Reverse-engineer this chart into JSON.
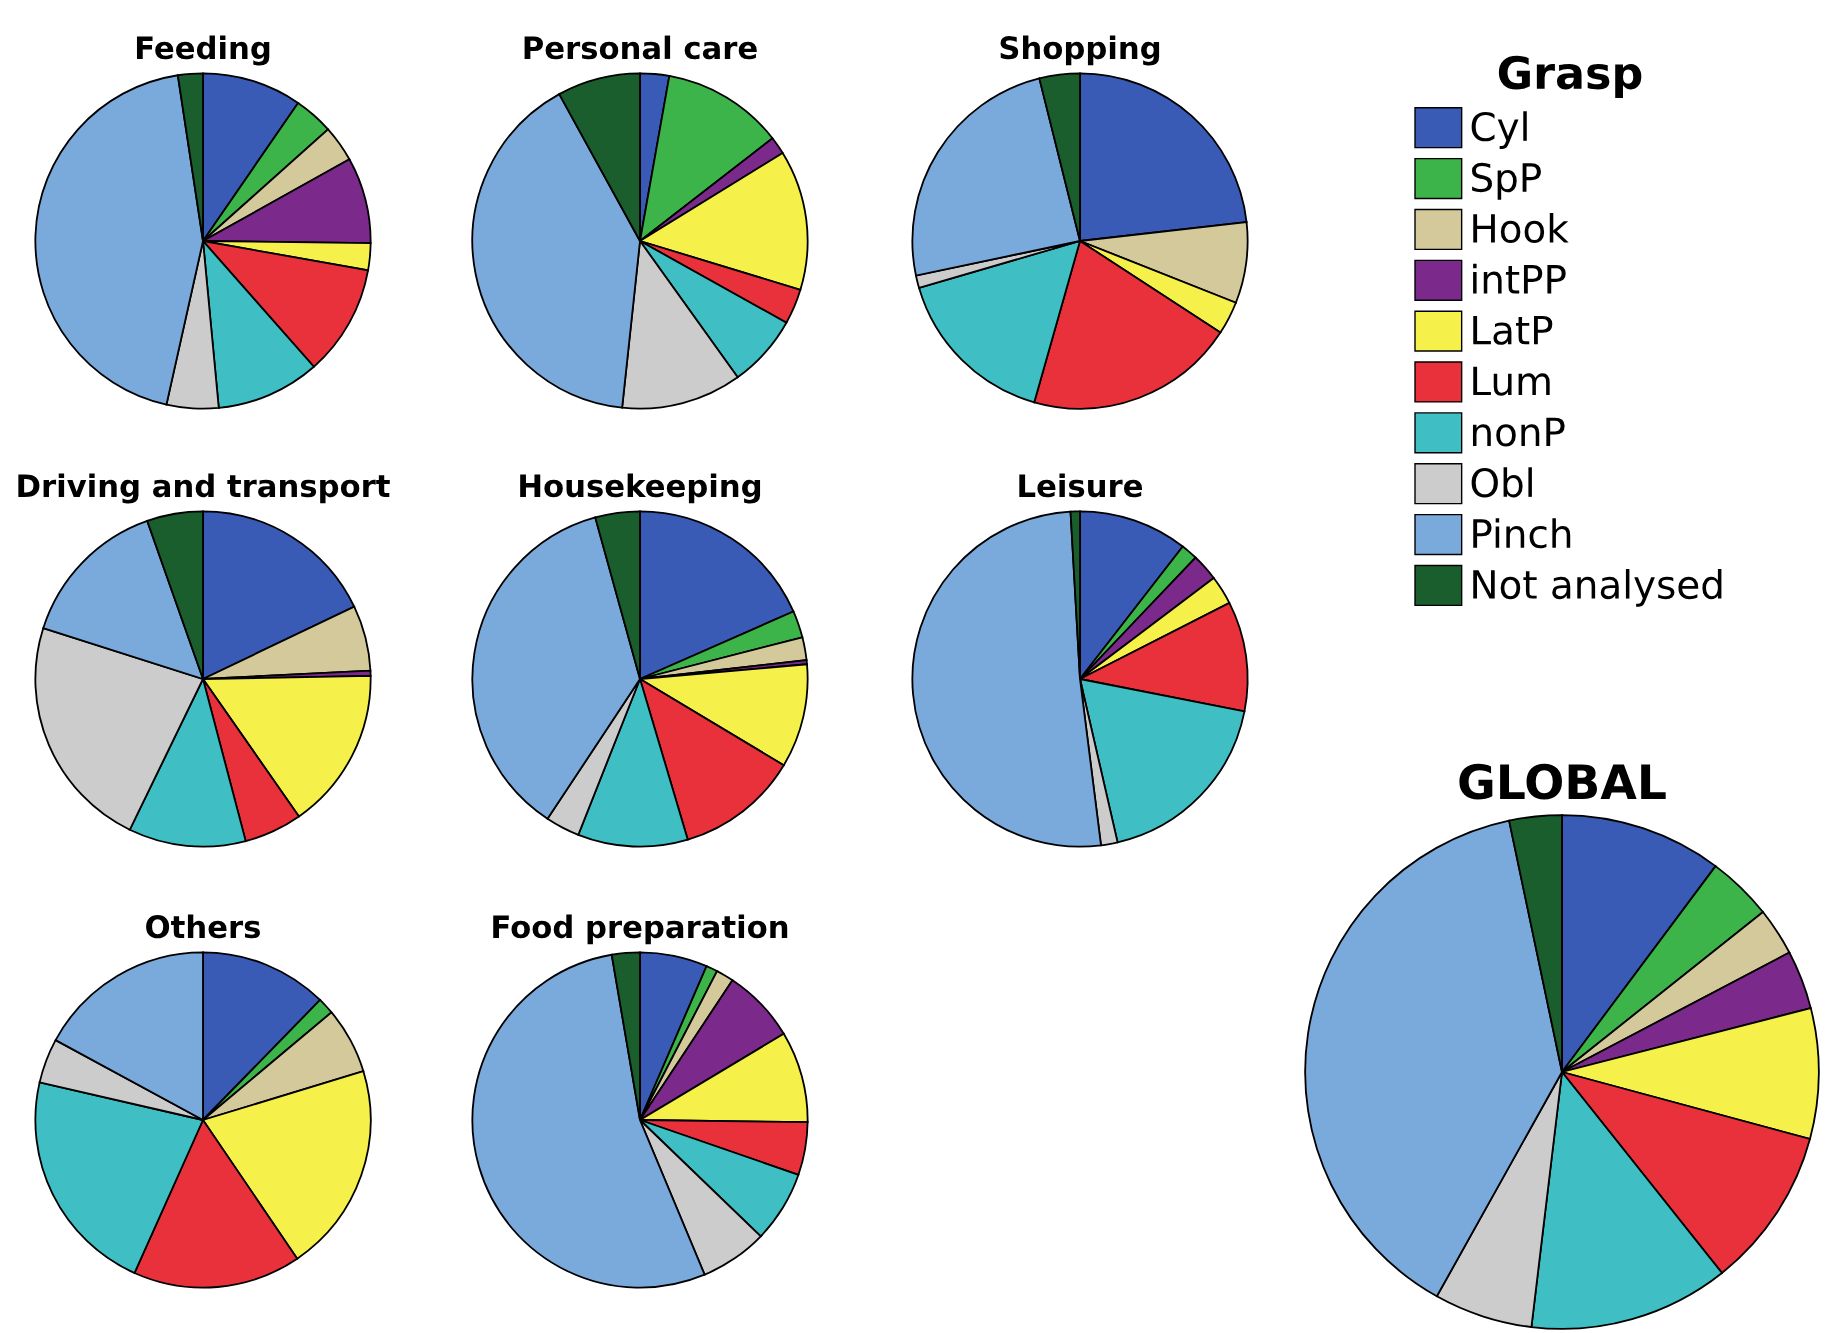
{
  "chart_data": [
    {
      "type": "pie",
      "title": "Feeding",
      "legend_title": "Grasp",
      "legend": "right",
      "categories": [
        "Cyl",
        "SpP",
        "Hook",
        "intPP",
        "LatP",
        "Lum",
        "nonP",
        "Obl",
        "Pinch",
        "Not analysed"
      ],
      "values": [
        9.6,
        3.8,
        3.5,
        8.3,
        2.6,
        10.7,
        10,
        5,
        44.1,
        2.4
      ],
      "colors": [
        "#3a5bb5",
        "#3cb44a",
        "#d4c99a",
        "#7b2a8c",
        "#f5f04a",
        "#e8313a",
        "#3fbfc4",
        "#cccccc",
        "#7aa9dc",
        "#1b5e2e"
      ]
    },
    {
      "type": "pie",
      "title": "Personal care",
      "categories": [
        null,
        null,
        null,
        null,
        null,
        null,
        null,
        null,
        null,
        null
      ],
      "values": [
        2.8,
        11.7,
        0,
        1.7,
        13.5,
        3.4,
        7,
        11.6,
        40.3,
        8
      ],
      "colors": [
        "#3a5bb5",
        "#3cb44a",
        "#d4c99a",
        "#7b2a8c",
        "#f5f04a",
        "#e8313a",
        "#3fbfc4",
        "#cccccc",
        "#7aa9dc",
        "#1b5e2e"
      ]
    },
    {
      "type": "pie",
      "title": "Shopping",
      "categories": [
        null,
        null,
        null,
        null,
        null,
        null,
        null,
        null,
        null,
        null
      ],
      "values": [
        23.2,
        0,
        7.8,
        0,
        3.2,
        20.2,
        16.1,
        1.2,
        24.4,
        3.9
      ],
      "colors": [
        "#3a5bb5",
        "#3cb44a",
        "#d4c99a",
        "#7b2a8c",
        "#f5f04a",
        "#e8313a",
        "#3fbfc4",
        "#cccccc",
        "#7aa9dc",
        "#1b5e2e"
      ]
    },
    {
      "type": "pie",
      "title": "Driving and transport",
      "categories": [
        null,
        null,
        null,
        null,
        null,
        null,
        null,
        null,
        null,
        null
      ],
      "values": [
        17.9,
        0,
        6.3,
        0.5,
        15.6,
        5.6,
        11.3,
        22.7,
        14.7,
        5.4
      ],
      "colors": [
        "#3a5bb5",
        "#3cb44a",
        "#d4c99a",
        "#7b2a8c",
        "#f5f04a",
        "#e8313a",
        "#3fbfc4",
        "#cccccc",
        "#7aa9dc",
        "#1b5e2e"
      ]
    },
    {
      "type": "pie",
      "title": "Housekeeping",
      "categories": [
        null,
        null,
        null,
        null,
        null,
        null,
        null,
        null,
        null,
        null
      ],
      "values": [
        18.4,
        2.6,
        2.2,
        0.4,
        10,
        11.8,
        10.6,
        3.3,
        36.4,
        4.3
      ],
      "colors": [
        "#3a5bb5",
        "#3cb44a",
        "#d4c99a",
        "#7b2a8c",
        "#f5f04a",
        "#e8313a",
        "#3fbfc4",
        "#cccccc",
        "#7aa9dc",
        "#1b5e2e"
      ]
    },
    {
      "type": "pie",
      "title": "Leisure",
      "categories": [
        null,
        null,
        null,
        null,
        null,
        null,
        null,
        null,
        null,
        null
      ],
      "values": [
        10.5,
        1.6,
        0,
        2.6,
        2.8,
        10.6,
        18.3,
        1.6,
        51.1,
        0.9
      ],
      "colors": [
        "#3a5bb5",
        "#3cb44a",
        "#d4c99a",
        "#7b2a8c",
        "#f5f04a",
        "#e8313a",
        "#3fbfc4",
        "#cccccc",
        "#7aa9dc",
        "#1b5e2e"
      ]
    },
    {
      "type": "pie",
      "title": "Others",
      "categories": [
        null,
        null,
        null,
        null,
        null,
        null,
        null,
        null,
        null,
        null
      ],
      "values": [
        12.3,
        1.6,
        6.4,
        0,
        20.2,
        16.2,
        21.9,
        4.3,
        17.1,
        0
      ],
      "colors": [
        "#3a5bb5",
        "#3cb44a",
        "#d4c99a",
        "#7b2a8c",
        "#f5f04a",
        "#e8313a",
        "#3fbfc4",
        "#cccccc",
        "#7aa9dc",
        "#1b5e2e"
      ]
    },
    {
      "type": "pie",
      "title": "Food preparation",
      "categories": [
        null,
        null,
        null,
        null,
        null,
        null,
        null,
        null,
        null,
        null
      ],
      "values": [
        6.5,
        1.1,
        1.7,
        7.1,
        8.8,
        5.1,
        6.9,
        6.5,
        53.6,
        2.7
      ],
      "colors": [
        "#3a5bb5",
        "#3cb44a",
        "#d4c99a",
        "#7b2a8c",
        "#f5f04a",
        "#e8313a",
        "#3fbfc4",
        "#cccccc",
        "#7aa9dc",
        "#1b5e2e"
      ]
    },
    {
      "type": "pie",
      "title": "GLOBAL",
      "categories": [
        null,
        null,
        null,
        null,
        null,
        null,
        null,
        null,
        null,
        null
      ],
      "values": [
        10.2,
        4.1,
        3,
        3.7,
        8.2,
        10.1,
        12.6,
        6.2,
        38.6,
        3.3
      ],
      "colors": [
        "#3a5bb5",
        "#3cb44a",
        "#d4c99a",
        "#7b2a8c",
        "#f5f04a",
        "#e8313a",
        "#3fbfc4",
        "#cccccc",
        "#7aa9dc",
        "#1b5e2e"
      ]
    }
  ]
}
